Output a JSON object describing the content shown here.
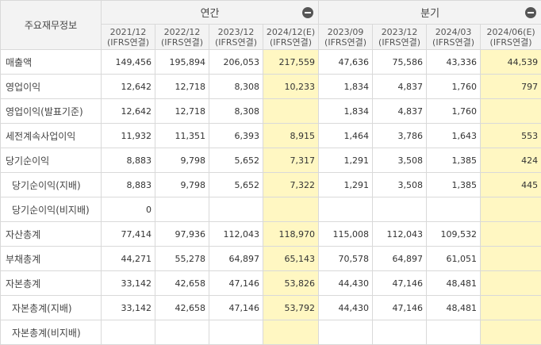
{
  "header": {
    "row_label": "주요재무정보",
    "annual_label": "연간",
    "quarter_label": "분기"
  },
  "periods": [
    {
      "date": "2021/12",
      "basis": "(IFRS연결)",
      "estimate": false
    },
    {
      "date": "2022/12",
      "basis": "(IFRS연결)",
      "estimate": false
    },
    {
      "date": "2023/12",
      "basis": "(IFRS연결)",
      "estimate": false
    },
    {
      "date": "2024/12(E)",
      "basis": "(IFRS연결)",
      "estimate": true
    },
    {
      "date": "2023/09",
      "basis": "(IFRS연결)",
      "estimate": false
    },
    {
      "date": "2023/12",
      "basis": "(IFRS연결)",
      "estimate": false
    },
    {
      "date": "2024/03",
      "basis": "(IFRS연결)",
      "estimate": false
    },
    {
      "date": "2024/06(E)",
      "basis": "(IFRS연결)",
      "estimate": true
    }
  ],
  "rows": [
    {
      "label": "매출액",
      "sub": false,
      "values": [
        "149,456",
        "195,894",
        "206,053",
        "217,559",
        "47,636",
        "75,586",
        "43,336",
        "44,539"
      ]
    },
    {
      "label": "영업이익",
      "sub": false,
      "values": [
        "12,642",
        "12,718",
        "8,308",
        "10,233",
        "1,834",
        "4,837",
        "1,760",
        "797"
      ]
    },
    {
      "label": "영업이익(발표기준)",
      "sub": false,
      "values": [
        "12,642",
        "12,718",
        "8,308",
        "",
        "1,834",
        "4,837",
        "1,760",
        ""
      ]
    },
    {
      "label": "세전계속사업이익",
      "sub": false,
      "values": [
        "11,932",
        "11,351",
        "6,393",
        "8,915",
        "1,464",
        "3,786",
        "1,643",
        "553"
      ]
    },
    {
      "label": "당기순이익",
      "sub": false,
      "values": [
        "8,883",
        "9,798",
        "5,652",
        "7,317",
        "1,291",
        "3,508",
        "1,385",
        "424"
      ]
    },
    {
      "label": "당기순이익(지배)",
      "sub": true,
      "values": [
        "8,883",
        "9,798",
        "5,652",
        "7,322",
        "1,291",
        "3,508",
        "1,385",
        "445"
      ]
    },
    {
      "label": "당기순이익(비지배)",
      "sub": true,
      "values": [
        "0",
        "",
        "",
        "",
        "",
        "",
        "",
        ""
      ]
    },
    {
      "label": "자산총계",
      "sub": false,
      "values": [
        "77,414",
        "97,936",
        "112,043",
        "118,970",
        "115,008",
        "112,043",
        "109,532",
        ""
      ]
    },
    {
      "label": "부채총계",
      "sub": false,
      "values": [
        "44,271",
        "55,278",
        "64,897",
        "65,143",
        "70,578",
        "64,897",
        "61,051",
        ""
      ]
    },
    {
      "label": "자본총계",
      "sub": false,
      "values": [
        "33,142",
        "42,658",
        "47,146",
        "53,826",
        "44,430",
        "47,146",
        "48,481",
        ""
      ]
    },
    {
      "label": "자본총계(지배)",
      "sub": true,
      "values": [
        "33,142",
        "42,658",
        "47,146",
        "53,792",
        "44,430",
        "47,146",
        "48,481",
        ""
      ]
    },
    {
      "label": "자본총계(비지배)",
      "sub": true,
      "values": [
        "",
        "",
        "",
        "",
        "",
        "",
        "",
        ""
      ]
    }
  ]
}
